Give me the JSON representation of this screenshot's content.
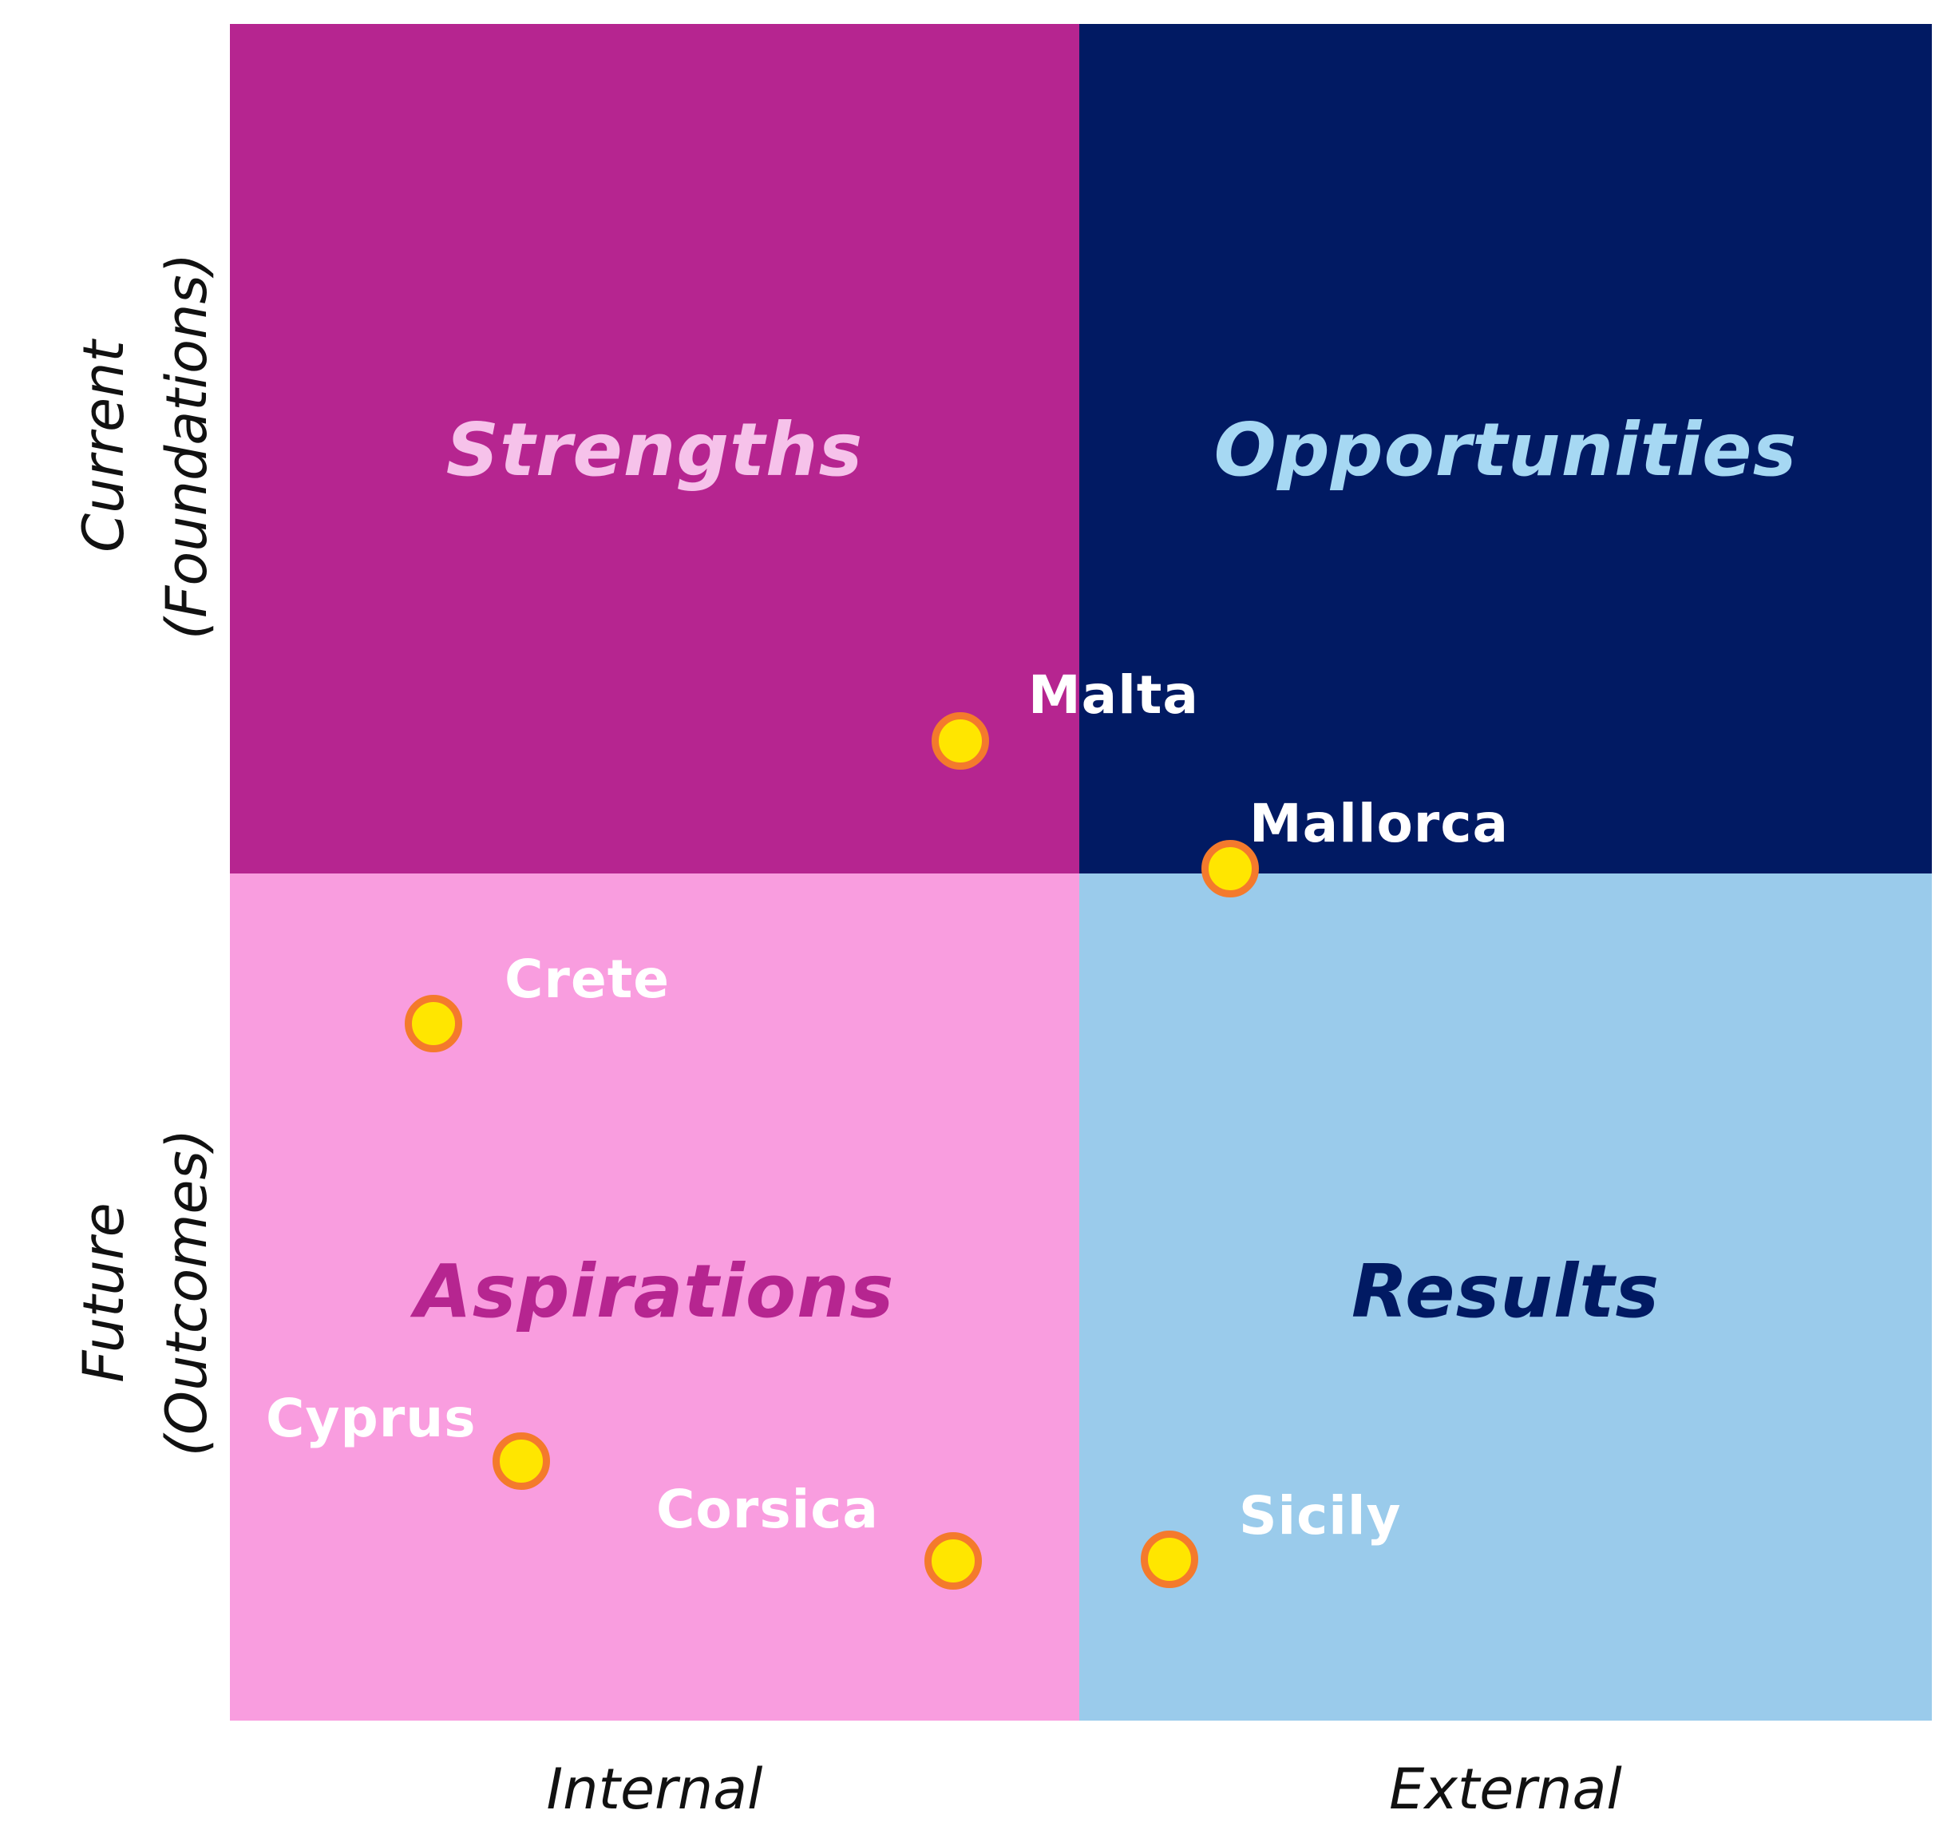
{
  "quadrants": {
    "top_left": {
      "label": "Strengths",
      "fill": "#b62590",
      "text_color": "#f6c2ea"
    },
    "top_right": {
      "label": "Opportunities",
      "fill": "#011a63",
      "text_color": "#a6d8f3"
    },
    "bottom_left": {
      "label": "Aspirations",
      "fill": "#f99ddf",
      "text_color": "#b62590"
    },
    "bottom_right": {
      "label": "Results",
      "fill": "#9acbeb",
      "text_color": "#011a63"
    }
  },
  "axes": {
    "x_left": "Internal",
    "x_right": "External",
    "y_top_line1": "Current",
    "y_top_line2": "(Foundations)",
    "y_bottom_line1": "Future",
    "y_bottom_line2": "(Outcomes)"
  },
  "markers": [
    {
      "name": "Malta"
    },
    {
      "name": "Mallorca"
    },
    {
      "name": "Crete"
    },
    {
      "name": "Cyprus"
    },
    {
      "name": "Corsica"
    },
    {
      "name": "Sicily"
    }
  ],
  "colors": {
    "marker_fill": "#ffe600",
    "marker_border": "#f47a2c",
    "marker_label": "#ffffff"
  }
}
